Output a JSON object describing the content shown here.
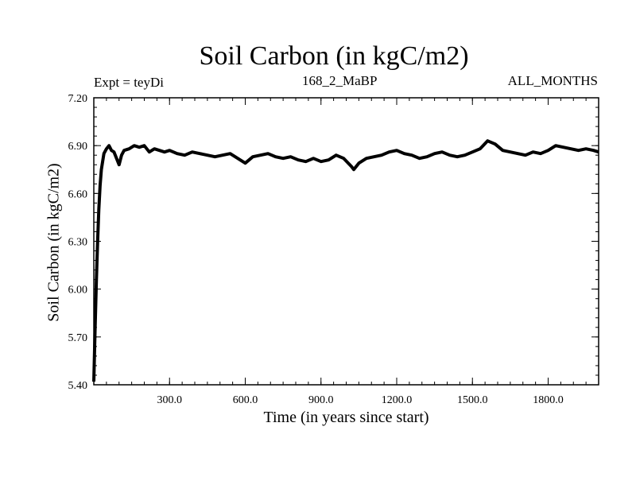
{
  "chart_data": {
    "type": "line",
    "title": "Soil Carbon (in kgC/m2)",
    "subtitle_left": "Expt = teyDi",
    "subtitle_center": "168_2_MaBP",
    "subtitle_right": "ALL_MONTHS",
    "xlabel": "Time (in years since start)",
    "ylabel": "Soil Carbon (in kgC/m2)",
    "xlim": [
      0,
      2000
    ],
    "ylim": [
      5.4,
      7.2
    ],
    "xticks": [
      300,
      600,
      900,
      1200,
      1500,
      1800
    ],
    "xtick_labels": [
      "300.0",
      "600.0",
      "900.0",
      "1200.0",
      "1500.0",
      "1800.0"
    ],
    "yticks": [
      5.4,
      5.7,
      6.0,
      6.3,
      6.6,
      6.9,
      7.2
    ],
    "ytick_labels": [
      "5.40",
      "5.70",
      "6.00",
      "6.30",
      "6.60",
      "6.90",
      "7.20"
    ],
    "grid": false,
    "series": [
      {
        "name": "Soil Carbon",
        "x": [
          0,
          5,
          10,
          15,
          20,
          25,
          30,
          35,
          40,
          50,
          60,
          70,
          80,
          90,
          100,
          110,
          120,
          140,
          160,
          180,
          200,
          220,
          240,
          260,
          280,
          300,
          330,
          360,
          390,
          420,
          450,
          480,
          510,
          540,
          570,
          600,
          630,
          660,
          690,
          720,
          750,
          780,
          810,
          840,
          870,
          900,
          930,
          960,
          990,
          1020,
          1030,
          1050,
          1080,
          1110,
          1140,
          1170,
          1200,
          1230,
          1260,
          1290,
          1320,
          1350,
          1380,
          1410,
          1440,
          1470,
          1500,
          1530,
          1560,
          1590,
          1620,
          1650,
          1680,
          1710,
          1740,
          1770,
          1800,
          1830,
          1860,
          1890,
          1920,
          1950,
          1980,
          2000
        ],
        "values": [
          5.42,
          5.75,
          6.05,
          6.3,
          6.5,
          6.65,
          6.75,
          6.8,
          6.85,
          6.88,
          6.9,
          6.87,
          6.86,
          6.82,
          6.78,
          6.84,
          6.87,
          6.88,
          6.9,
          6.89,
          6.9,
          6.86,
          6.88,
          6.87,
          6.86,
          6.87,
          6.85,
          6.84,
          6.86,
          6.85,
          6.84,
          6.83,
          6.84,
          6.85,
          6.82,
          6.79,
          6.83,
          6.84,
          6.85,
          6.83,
          6.82,
          6.83,
          6.81,
          6.8,
          6.82,
          6.8,
          6.81,
          6.84,
          6.82,
          6.77,
          6.75,
          6.79,
          6.82,
          6.83,
          6.84,
          6.86,
          6.87,
          6.85,
          6.84,
          6.82,
          6.83,
          6.85,
          6.86,
          6.84,
          6.83,
          6.84,
          6.86,
          6.88,
          6.93,
          6.91,
          6.87,
          6.86,
          6.85,
          6.84,
          6.86,
          6.85,
          6.87,
          6.9,
          6.89,
          6.88,
          6.87,
          6.88,
          6.87,
          6.86
        ]
      }
    ]
  }
}
